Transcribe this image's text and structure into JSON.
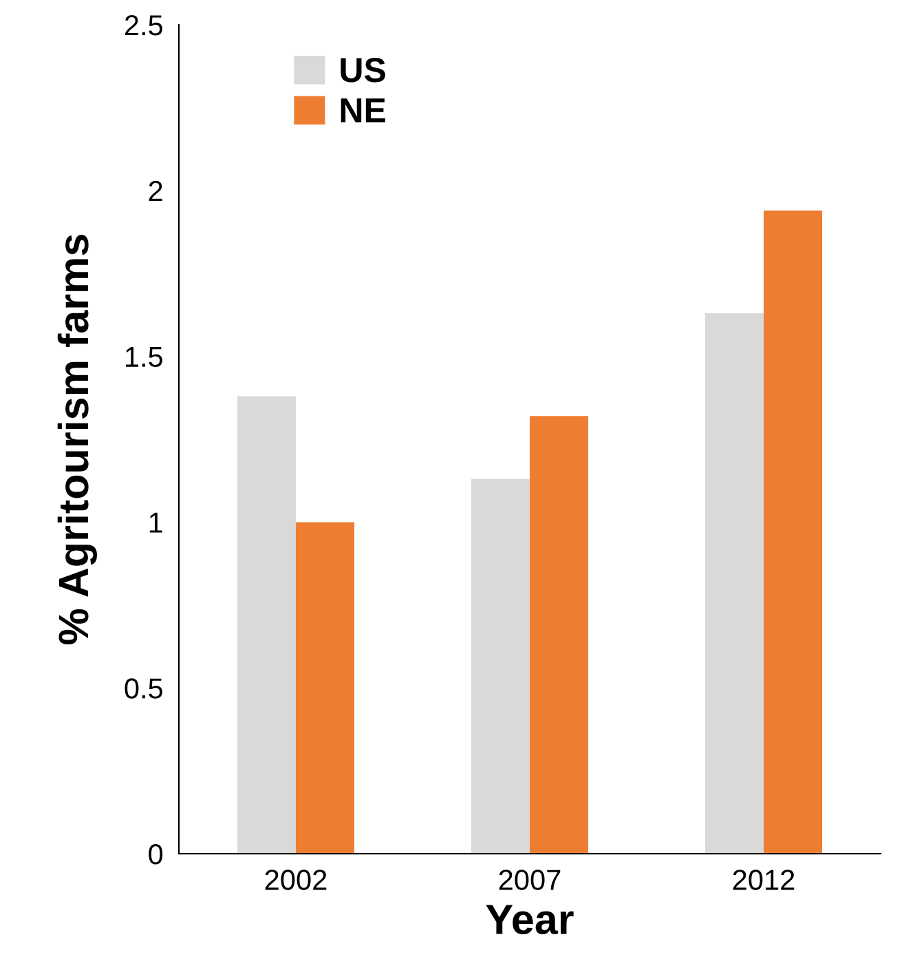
{
  "chart_data": {
    "type": "bar",
    "xlabel": "Year",
    "ylabel": "% Agritourism farms",
    "categories": [
      "2002",
      "2007",
      "2012"
    ],
    "series": [
      {
        "name": "US",
        "color": "#d9d9d9",
        "values": [
          1.38,
          1.13,
          1.63
        ]
      },
      {
        "name": "NE",
        "color": "#ed7d31",
        "values": [
          1.0,
          1.32,
          1.94
        ]
      }
    ],
    "ylim": [
      0,
      2.5
    ],
    "yticks": [
      0,
      0.5,
      1,
      1.5,
      2,
      2.5
    ],
    "grid": false,
    "legend": "top left"
  }
}
